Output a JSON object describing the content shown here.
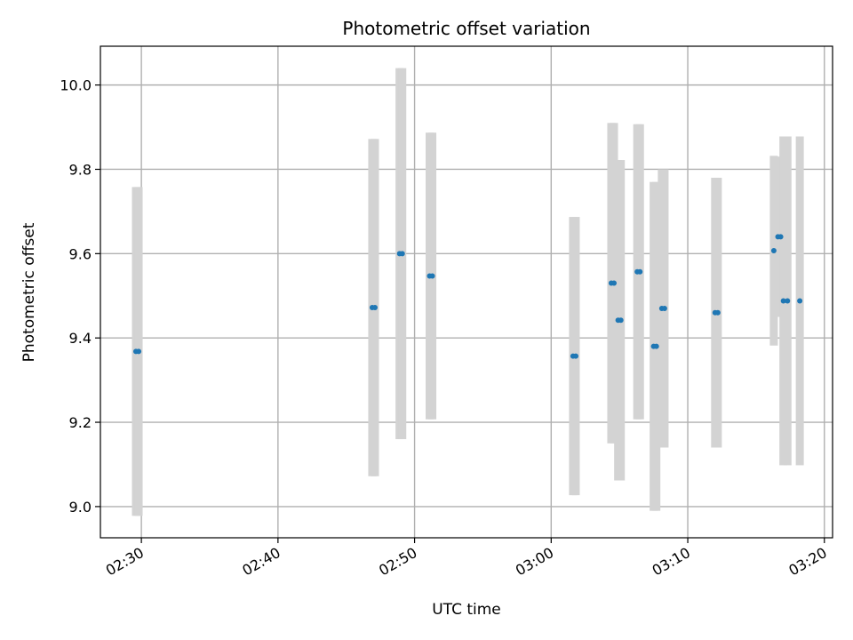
{
  "chart_data": {
    "type": "scatter",
    "title": "Photometric offset variation",
    "xlabel": "UTC time",
    "ylabel": "Photometric offset",
    "x_ticks": [
      "02:30",
      "02:40",
      "02:50",
      "03:00",
      "03:10",
      "03:20"
    ],
    "x_tick_minutes": [
      150,
      160,
      170,
      180,
      190,
      200
    ],
    "xlim_minutes": [
      147.0,
      200.6
    ],
    "y_ticks": [
      "9.0",
      "9.2",
      "9.4",
      "9.6",
      "9.8",
      "10.0"
    ],
    "y_tick_values": [
      9.0,
      9.2,
      9.4,
      9.6,
      9.8,
      10.0
    ],
    "ylim": [
      8.926,
      10.092
    ],
    "grid": true,
    "colors": {
      "point": "#1f77b4",
      "errorbar": "#d3d3d3",
      "grid": "#b0b0b0"
    },
    "points": [
      {
        "t": 149.6,
        "y": 9.368,
        "err": 0.39
      },
      {
        "t": 149.8,
        "y": 9.368,
        "err": 0.39
      },
      {
        "t": 166.9,
        "y": 9.472,
        "err": 0.4
      },
      {
        "t": 167.1,
        "y": 9.472,
        "err": 0.4
      },
      {
        "t": 168.9,
        "y": 9.6,
        "err": 0.44
      },
      {
        "t": 169.1,
        "y": 9.6,
        "err": 0.44
      },
      {
        "t": 171.1,
        "y": 9.547,
        "err": 0.34
      },
      {
        "t": 171.3,
        "y": 9.547,
        "err": 0.34
      },
      {
        "t": 181.6,
        "y": 9.357,
        "err": 0.33
      },
      {
        "t": 181.8,
        "y": 9.357,
        "err": 0.33
      },
      {
        "t": 184.4,
        "y": 9.53,
        "err": 0.38
      },
      {
        "t": 184.6,
        "y": 9.53,
        "err": 0.38
      },
      {
        "t": 184.9,
        "y": 9.442,
        "err": 0.38
      },
      {
        "t": 185.1,
        "y": 9.442,
        "err": 0.38
      },
      {
        "t": 186.3,
        "y": 9.557,
        "err": 0.35
      },
      {
        "t": 186.5,
        "y": 9.557,
        "err": 0.35
      },
      {
        "t": 187.5,
        "y": 9.38,
        "err": 0.39
      },
      {
        "t": 187.7,
        "y": 9.38,
        "err": 0.39
      },
      {
        "t": 188.1,
        "y": 9.47,
        "err": 0.33
      },
      {
        "t": 188.3,
        "y": 9.47,
        "err": 0.33
      },
      {
        "t": 192.0,
        "y": 9.46,
        "err": 0.32
      },
      {
        "t": 192.2,
        "y": 9.46,
        "err": 0.32
      },
      {
        "t": 196.3,
        "y": 9.607,
        "err": 0.225
      },
      {
        "t": 196.6,
        "y": 9.64,
        "err": 0.19
      },
      {
        "t": 196.8,
        "y": 9.64,
        "err": 0.19
      },
      {
        "t": 197.0,
        "y": 9.488,
        "err": 0.39
      },
      {
        "t": 197.3,
        "y": 9.488,
        "err": 0.39
      },
      {
        "t": 198.2,
        "y": 9.488,
        "err": 0.39
      }
    ]
  }
}
